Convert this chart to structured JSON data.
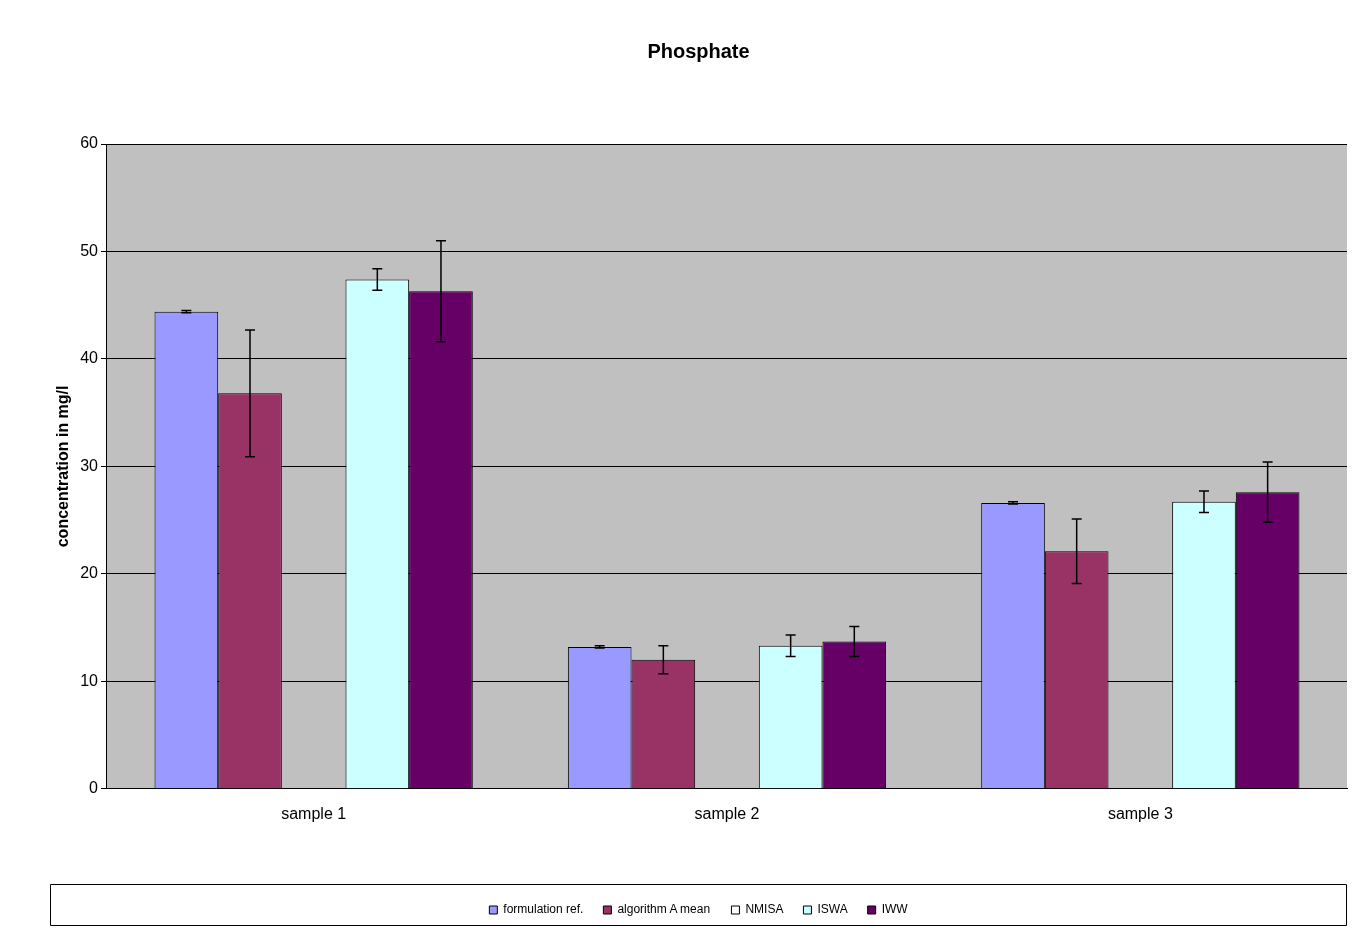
{
  "chart_data": {
    "type": "bar",
    "title": "Phosphate",
    "ylabel": "concentration in mg/l",
    "categories": [
      "sample 1",
      "sample 2",
      "sample 3"
    ],
    "series": [
      {
        "name": "formulation ref.",
        "color": "#9999ff",
        "values": [
          44.4,
          13.2,
          26.6
        ],
        "errors": [
          0.1,
          0.1,
          0.1
        ]
      },
      {
        "name": "algorithm A mean",
        "color": "#993366",
        "values": [
          36.8,
          12.0,
          22.1
        ],
        "errors": [
          5.9,
          1.3,
          3.0
        ]
      },
      {
        "name": "NMISA",
        "color": "#ffffff",
        "values": [
          null,
          null,
          null
        ]
      },
      {
        "name": "ISWA",
        "color": "#ccffff",
        "values": [
          47.4,
          13.3,
          26.7
        ],
        "errors": [
          1.0,
          1.0,
          1.0
        ]
      },
      {
        "name": "IWW",
        "color": "#660066",
        "values": [
          46.3,
          13.7,
          27.6
        ],
        "errors": [
          4.7,
          1.4,
          2.8
        ]
      }
    ],
    "ylim": [
      0,
      60
    ],
    "yticks": [
      0,
      10,
      20,
      30,
      40,
      50,
      60
    ],
    "grid": "y",
    "legend": "bottom"
  }
}
